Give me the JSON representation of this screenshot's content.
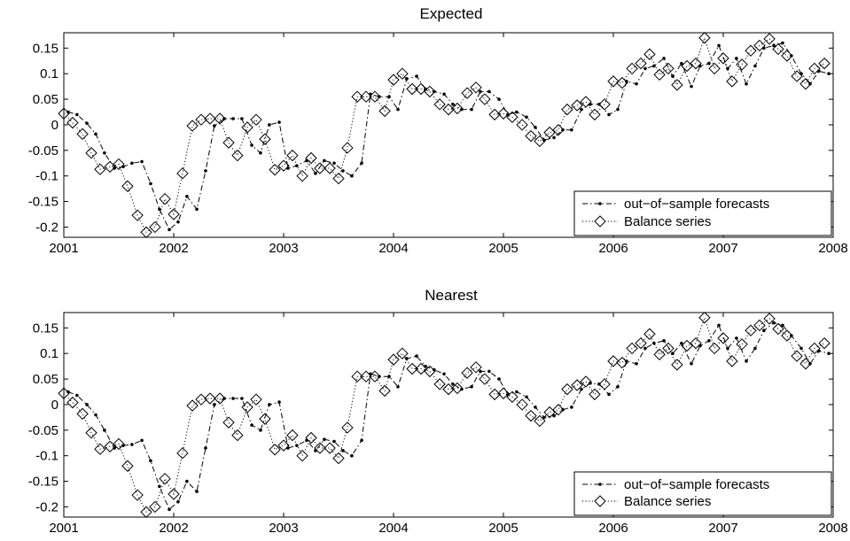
{
  "colors": {
    "axes": "#000000",
    "series": "#000000",
    "background": "#ffffff"
  },
  "chart_data": [
    {
      "type": "line",
      "title": "Expected",
      "xlabel": "",
      "ylabel": "",
      "xlim": [
        2001,
        2008
      ],
      "ylim": [
        -0.22,
        0.18
      ],
      "x_ticks": [
        2001,
        2002,
        2003,
        2004,
        2005,
        2006,
        2007,
        2008
      ],
      "x_tick_labels": [
        "2001",
        "2002",
        "2003",
        "2004",
        "2005",
        "2006",
        "2007",
        "2008"
      ],
      "y_ticks": [
        -0.2,
        -0.15,
        -0.1,
        -0.05,
        0,
        0.05,
        0.1,
        0.15
      ],
      "y_tick_labels": [
        "-0.2",
        "-0.15",
        "-0.1",
        "-0.05",
        "0",
        "0.05",
        "0.1",
        "0.15"
      ],
      "grid": false,
      "legend_position": "bottom-right",
      "series": [
        {
          "name": "out−of−sample forecasts",
          "marker": "dot",
          "line_style": "dash-dot",
          "x": [
            2001.04,
            2001.12,
            2001.21,
            2001.29,
            2001.37,
            2001.46,
            2001.54,
            2001.62,
            2001.71,
            2001.79,
            2001.87,
            2001.96,
            2002.04,
            2002.12,
            2002.21,
            2002.29,
            2002.37,
            2002.46,
            2002.54,
            2002.62,
            2002.71,
            2002.79,
            2002.87,
            2002.96,
            2003.04,
            2003.12,
            2003.21,
            2003.29,
            2003.37,
            2003.46,
            2003.54,
            2003.62,
            2003.71,
            2003.79,
            2003.87,
            2003.96,
            2004.04,
            2004.12,
            2004.21,
            2004.29,
            2004.37,
            2004.46,
            2004.54,
            2004.62,
            2004.71,
            2004.79,
            2004.87,
            2004.96,
            2005.04,
            2005.12,
            2005.21,
            2005.29,
            2005.37,
            2005.46,
            2005.54,
            2005.62,
            2005.71,
            2005.79,
            2005.87,
            2005.96,
            2006.04,
            2006.12,
            2006.21,
            2006.29,
            2006.37,
            2006.46,
            2006.54,
            2006.62,
            2006.71,
            2006.79,
            2006.87,
            2006.96,
            2007.04,
            2007.12,
            2007.21,
            2007.29,
            2007.37,
            2007.46,
            2007.54,
            2007.62,
            2007.71,
            2007.79,
            2007.87,
            2007.96
          ],
          "values": [
            0.025,
            0.02,
            0.003,
            -0.018,
            -0.055,
            -0.085,
            -0.082,
            -0.075,
            -0.072,
            -0.115,
            -0.165,
            -0.205,
            -0.19,
            -0.14,
            -0.165,
            -0.09,
            -0.002,
            0.012,
            0.012,
            0.012,
            -0.04,
            -0.055,
            0.0,
            0.005,
            -0.085,
            -0.08,
            -0.07,
            -0.095,
            -0.07,
            -0.075,
            -0.09,
            -0.1,
            -0.075,
            0.06,
            0.055,
            0.055,
            0.03,
            0.09,
            0.095,
            0.07,
            0.065,
            0.06,
            0.04,
            0.03,
            0.03,
            0.065,
            0.065,
            0.05,
            0.02,
            0.025,
            0.015,
            -0.005,
            -0.03,
            -0.025,
            -0.01,
            -0.01,
            0.03,
            0.04,
            0.04,
            0.02,
            0.03,
            0.085,
            0.08,
            0.11,
            0.115,
            0.13,
            0.095,
            0.12,
            0.075,
            0.115,
            0.12,
            0.155,
            0.11,
            0.13,
            0.08,
            0.115,
            0.15,
            0.155,
            0.16,
            0.135,
            0.1,
            0.08,
            0.105,
            0.1
          ]
        },
        {
          "name": "Balance series",
          "marker": "diamond",
          "line_style": "dotted",
          "x": [
            2001.0,
            2001.08,
            2001.17,
            2001.25,
            2001.33,
            2001.42,
            2001.5,
            2001.58,
            2001.67,
            2001.75,
            2001.83,
            2001.92,
            2002.0,
            2002.08,
            2002.17,
            2002.25,
            2002.33,
            2002.42,
            2002.5,
            2002.58,
            2002.67,
            2002.75,
            2002.83,
            2002.92,
            2003.0,
            2003.08,
            2003.17,
            2003.25,
            2003.33,
            2003.42,
            2003.5,
            2003.58,
            2003.67,
            2003.75,
            2003.83,
            2003.92,
            2004.0,
            2004.08,
            2004.17,
            2004.25,
            2004.33,
            2004.42,
            2004.5,
            2004.58,
            2004.67,
            2004.75,
            2004.83,
            2004.92,
            2005.0,
            2005.08,
            2005.17,
            2005.25,
            2005.33,
            2005.42,
            2005.5,
            2005.58,
            2005.67,
            2005.75,
            2005.83,
            2005.92,
            2006.0,
            2006.08,
            2006.17,
            2006.25,
            2006.33,
            2006.42,
            2006.5,
            2006.58,
            2006.67,
            2006.75,
            2006.83,
            2006.92,
            2007.0,
            2007.08,
            2007.17,
            2007.25,
            2007.33,
            2007.42,
            2007.5,
            2007.58,
            2007.67,
            2007.75,
            2007.83,
            2007.92
          ],
          "values": [
            0.022,
            0.004,
            -0.018,
            -0.055,
            -0.087,
            -0.082,
            -0.077,
            -0.12,
            -0.177,
            -0.21,
            -0.2,
            -0.145,
            -0.175,
            -0.095,
            -0.002,
            0.01,
            0.012,
            0.012,
            -0.035,
            -0.06,
            -0.005,
            0.01,
            -0.028,
            -0.088,
            -0.08,
            -0.06,
            -0.1,
            -0.065,
            -0.085,
            -0.085,
            -0.105,
            -0.045,
            0.055,
            0.055,
            0.055,
            0.027,
            0.088,
            0.1,
            0.07,
            0.07,
            0.065,
            0.04,
            0.03,
            0.032,
            0.062,
            0.073,
            0.05,
            0.02,
            0.022,
            0.015,
            0.0,
            -0.022,
            -0.032,
            -0.015,
            -0.01,
            0.03,
            0.038,
            0.045,
            0.02,
            0.04,
            0.085,
            0.082,
            0.11,
            0.12,
            0.138,
            0.098,
            0.11,
            0.078,
            0.115,
            0.12,
            0.17,
            0.11,
            0.13,
            0.085,
            0.118,
            0.145,
            0.155,
            0.168,
            0.148,
            0.135,
            0.095,
            0.08,
            0.11,
            0.12
          ]
        }
      ]
    },
    {
      "type": "line",
      "title": "Nearest",
      "xlabel": "",
      "ylabel": "",
      "xlim": [
        2001,
        2008
      ],
      "ylim": [
        -0.22,
        0.18
      ],
      "x_ticks": [
        2001,
        2002,
        2003,
        2004,
        2005,
        2006,
        2007,
        2008
      ],
      "x_tick_labels": [
        "2001",
        "2002",
        "2003",
        "2004",
        "2005",
        "2006",
        "2007",
        "2008"
      ],
      "y_ticks": [
        -0.2,
        -0.15,
        -0.1,
        -0.05,
        0,
        0.05,
        0.1,
        0.15
      ],
      "y_tick_labels": [
        "-0.2",
        "-0.15",
        "-0.1",
        "-0.05",
        "0",
        "0.05",
        "0.1",
        "0.15"
      ],
      "grid": false,
      "legend_position": "bottom-right",
      "series": [
        {
          "name": "out−of−sample forecasts",
          "marker": "dot",
          "line_style": "dash-dot",
          "x": [
            2001.04,
            2001.12,
            2001.21,
            2001.29,
            2001.37,
            2001.46,
            2001.54,
            2001.62,
            2001.71,
            2001.79,
            2001.87,
            2001.96,
            2002.04,
            2002.12,
            2002.21,
            2002.29,
            2002.37,
            2002.46,
            2002.54,
            2002.62,
            2002.71,
            2002.79,
            2002.87,
            2002.96,
            2003.04,
            2003.12,
            2003.21,
            2003.29,
            2003.37,
            2003.46,
            2003.54,
            2003.62,
            2003.71,
            2003.79,
            2003.87,
            2003.96,
            2004.04,
            2004.12,
            2004.21,
            2004.29,
            2004.37,
            2004.46,
            2004.54,
            2004.62,
            2004.71,
            2004.79,
            2004.87,
            2004.96,
            2005.04,
            2005.12,
            2005.21,
            2005.29,
            2005.37,
            2005.46,
            2005.54,
            2005.62,
            2005.71,
            2005.79,
            2005.87,
            2005.96,
            2006.04,
            2006.12,
            2006.21,
            2006.29,
            2006.37,
            2006.46,
            2006.54,
            2006.62,
            2006.71,
            2006.79,
            2006.87,
            2006.96,
            2007.04,
            2007.12,
            2007.21,
            2007.29,
            2007.37,
            2007.46,
            2007.54,
            2007.62,
            2007.71,
            2007.79,
            2007.87,
            2007.96
          ],
          "values": [
            0.025,
            0.018,
            0.0,
            -0.02,
            -0.05,
            -0.085,
            -0.08,
            -0.078,
            -0.07,
            -0.11,
            -0.16,
            -0.205,
            -0.19,
            -0.15,
            -0.17,
            -0.085,
            0.0,
            0.012,
            0.012,
            0.012,
            -0.04,
            -0.05,
            0.0,
            0.005,
            -0.085,
            -0.08,
            -0.07,
            -0.09,
            -0.068,
            -0.072,
            -0.09,
            -0.1,
            -0.07,
            0.06,
            0.055,
            0.055,
            0.035,
            0.09,
            0.095,
            0.075,
            0.068,
            0.06,
            0.04,
            0.03,
            0.035,
            0.065,
            0.065,
            0.05,
            0.02,
            0.025,
            0.015,
            -0.005,
            -0.025,
            -0.022,
            -0.01,
            -0.005,
            0.03,
            0.042,
            0.04,
            0.02,
            0.035,
            0.085,
            0.08,
            0.11,
            0.12,
            0.125,
            0.1,
            0.12,
            0.08,
            0.115,
            0.125,
            0.155,
            0.11,
            0.13,
            0.085,
            0.11,
            0.145,
            0.16,
            0.155,
            0.135,
            0.11,
            0.08,
            0.105,
            0.1
          ]
        },
        {
          "name": "Balance series",
          "marker": "diamond",
          "line_style": "dotted",
          "x": [
            2001.0,
            2001.08,
            2001.17,
            2001.25,
            2001.33,
            2001.42,
            2001.5,
            2001.58,
            2001.67,
            2001.75,
            2001.83,
            2001.92,
            2002.0,
            2002.08,
            2002.17,
            2002.25,
            2002.33,
            2002.42,
            2002.5,
            2002.58,
            2002.67,
            2002.75,
            2002.83,
            2002.92,
            2003.0,
            2003.08,
            2003.17,
            2003.25,
            2003.33,
            2003.42,
            2003.5,
            2003.58,
            2003.67,
            2003.75,
            2003.83,
            2003.92,
            2004.0,
            2004.08,
            2004.17,
            2004.25,
            2004.33,
            2004.42,
            2004.5,
            2004.58,
            2004.67,
            2004.75,
            2004.83,
            2004.92,
            2005.0,
            2005.08,
            2005.17,
            2005.25,
            2005.33,
            2005.42,
            2005.5,
            2005.58,
            2005.67,
            2005.75,
            2005.83,
            2005.92,
            2006.0,
            2006.08,
            2006.17,
            2006.25,
            2006.33,
            2006.42,
            2006.5,
            2006.58,
            2006.67,
            2006.75,
            2006.83,
            2006.92,
            2007.0,
            2007.08,
            2007.17,
            2007.25,
            2007.33,
            2007.42,
            2007.5,
            2007.58,
            2007.67,
            2007.75,
            2007.83,
            2007.92
          ],
          "values": [
            0.022,
            0.004,
            -0.018,
            -0.055,
            -0.087,
            -0.082,
            -0.077,
            -0.12,
            -0.177,
            -0.21,
            -0.2,
            -0.145,
            -0.175,
            -0.095,
            -0.002,
            0.01,
            0.012,
            0.012,
            -0.035,
            -0.06,
            -0.005,
            0.01,
            -0.028,
            -0.088,
            -0.08,
            -0.06,
            -0.1,
            -0.065,
            -0.085,
            -0.085,
            -0.105,
            -0.045,
            0.055,
            0.055,
            0.055,
            0.027,
            0.088,
            0.1,
            0.07,
            0.07,
            0.065,
            0.04,
            0.03,
            0.032,
            0.062,
            0.073,
            0.05,
            0.02,
            0.022,
            0.015,
            0.0,
            -0.022,
            -0.032,
            -0.015,
            -0.01,
            0.03,
            0.038,
            0.045,
            0.02,
            0.04,
            0.085,
            0.082,
            0.11,
            0.12,
            0.138,
            0.098,
            0.11,
            0.078,
            0.115,
            0.12,
            0.17,
            0.11,
            0.13,
            0.085,
            0.118,
            0.145,
            0.155,
            0.168,
            0.148,
            0.135,
            0.095,
            0.08,
            0.11,
            0.12
          ]
        }
      ]
    }
  ]
}
